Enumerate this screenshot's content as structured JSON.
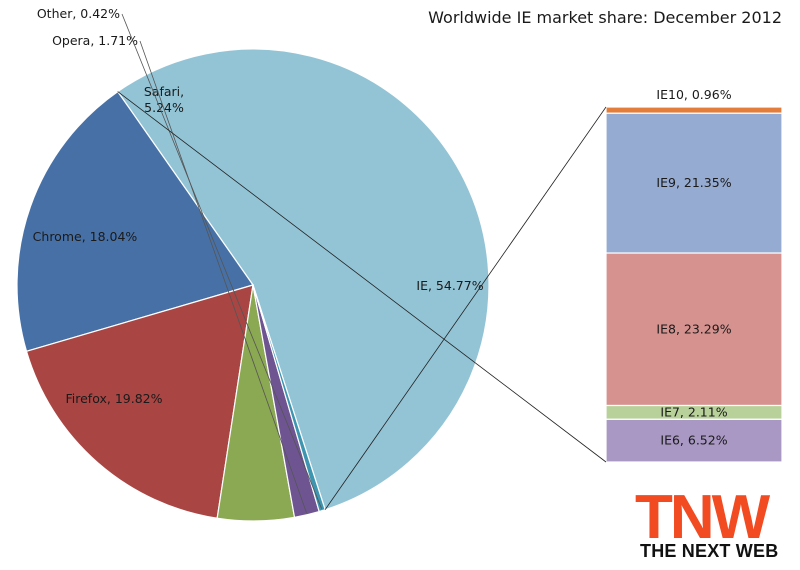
{
  "chart_data": [
    {
      "type": "pie",
      "title": "Worldwide IE market share: December 2012",
      "slices": [
        {
          "label": "IE",
          "value": 54.77,
          "display": "IE, 54.77%",
          "color": "#93c4d6"
        },
        {
          "label": "Firefox",
          "value": 19.82,
          "display": "Firefox, 19.82%",
          "color": "#4771a6"
        },
        {
          "label": "Chrome",
          "value": 18.04,
          "display": "Chrome, 18.04%",
          "color": "#a94644"
        },
        {
          "label": "Safari",
          "value": 5.24,
          "display": "Safari, 5.24%",
          "color": "#8ba853"
        },
        {
          "label": "Opera",
          "value": 1.71,
          "display": "Opera, 1.71%",
          "color": "#6e5592"
        },
        {
          "label": "Other",
          "value": 0.42,
          "display": "Other, 0.42%",
          "color": "#3d95b0"
        }
      ]
    },
    {
      "type": "bar",
      "stacked": true,
      "breakdown_of": "IE",
      "segments": [
        {
          "label": "IE10",
          "value": 0.96,
          "display": "IE10, 0.96%",
          "color": "#e27d3b"
        },
        {
          "label": "IE9",
          "value": 21.35,
          "display": "IE9, 21.35%",
          "color": "#95abd1"
        },
        {
          "label": "IE8",
          "value": 23.29,
          "display": "IE8, 23.29%",
          "color": "#d5928f"
        },
        {
          "label": "IE7",
          "value": 2.11,
          "display": "IE7, 2.11%",
          "color": "#b8d19a"
        },
        {
          "label": "IE6",
          "value": 6.52,
          "display": "IE6, 6.52%",
          "color": "#a898c3"
        }
      ]
    }
  ],
  "logo": {
    "mark": "TNW",
    "tagline": "THE NEXT WEB"
  }
}
